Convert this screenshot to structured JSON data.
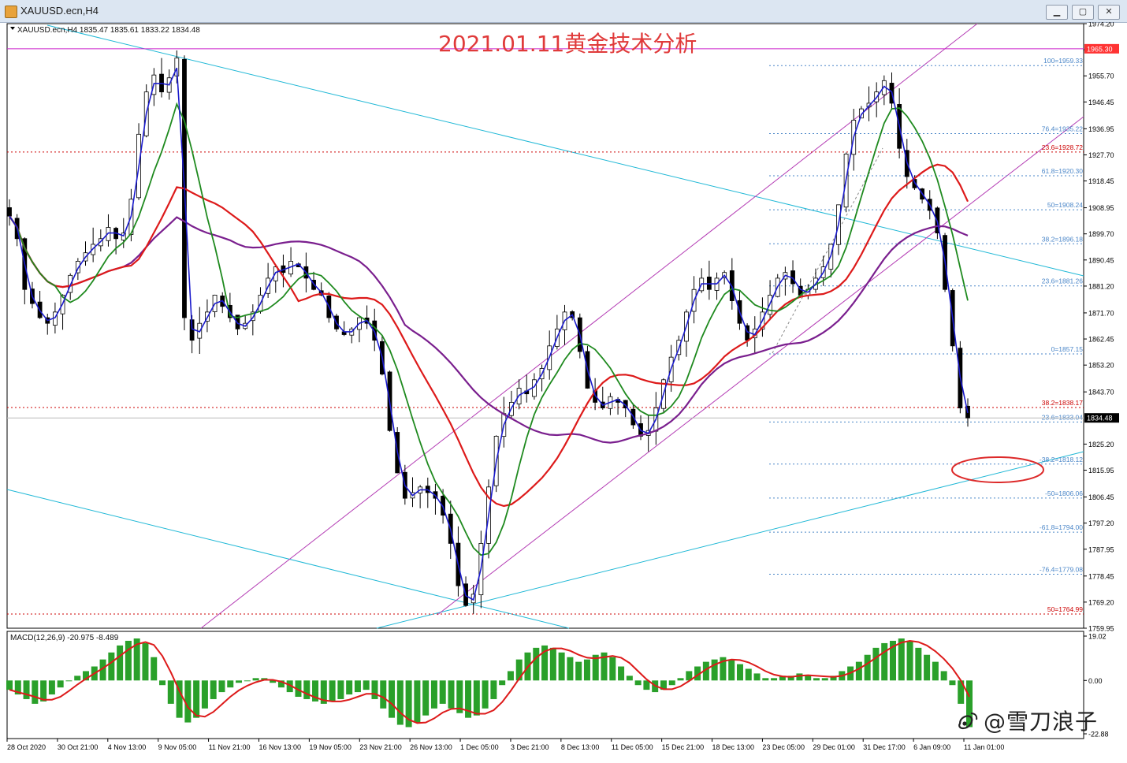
{
  "window": {
    "title": "XAUUSD.ecn,H4",
    "btn_min": "▁",
    "btn_max": "▢",
    "btn_close": "✕"
  },
  "header": {
    "info": "XAUUSD.ecn,H4  1835.47 1835.61 1833.22 1834.48",
    "caption": "2021.01.11黄金技术分析"
  },
  "macd": {
    "label": "MACD(12,26,9) -20.975 -8.489",
    "scale": [
      "19.02",
      "0.00",
      "-22.88"
    ]
  },
  "watermark": "@雪刀浪子",
  "colors": {
    "candle": "#000000",
    "sma_fast": "#1a1acc",
    "sma_mid": "#1f8a1f",
    "sma_red": "#dd1a1a",
    "sma_purple": "#7a1f8e",
    "trend_cyan": "#20b8d6",
    "channel": "#b43cb4",
    "level_red": "#cc0000",
    "fib_blue": "#4a86c8",
    "macd_hist": "#2aa02a",
    "macd_signal": "#dd1a1a",
    "highlight_ellipse": "#dd2a2a"
  },
  "chart_data": {
    "type": "candlestick",
    "symbol": "XAUUSD.ecn",
    "timeframe": "H4",
    "ohlc_last": {
      "open": 1835.47,
      "high": 1835.61,
      "low": 1833.22,
      "close": 1834.48
    },
    "current_price": "1834.48",
    "ylim": [
      1759.95,
      1974.2
    ],
    "y_ticks": [
      "1974.20",
      "1964.95",
      "1955.70",
      "1946.45",
      "1936.95",
      "1927.70",
      "1918.45",
      "1908.95",
      "1899.70",
      "1890.45",
      "1881.20",
      "1871.70",
      "1862.45",
      "1853.20",
      "1843.70",
      "1834.48",
      "1825.20",
      "1815.95",
      "1806.45",
      "1797.20",
      "1787.95",
      "1778.45",
      "1769.20",
      "1759.95"
    ],
    "x_ticks": [
      "28 Oct 2020",
      "30 Oct 21:00",
      "4 Nov 13:00",
      "9 Nov 05:00",
      "11 Nov 21:00",
      "16 Nov 13:00",
      "19 Nov 05:00",
      "23 Nov 21:00",
      "26 Nov 13:00",
      "1 Dec 05:00",
      "3 Dec 21:00",
      "8 Dec 13:00",
      "11 Dec 05:00",
      "15 Dec 21:00",
      "18 Dec 13:00",
      "23 Dec 05:00",
      "29 Dec 01:00",
      "31 Dec 17:00",
      "6 Jan 09:00",
      "11 Jan 01:00"
    ],
    "horizontal_levels": [
      {
        "label": "1965.30",
        "value": 1965.3,
        "color": "magenta"
      }
    ],
    "fib_levels": [
      {
        "label": "100=1959.33",
        "value": 1959.33,
        "style": "blue-dotted"
      },
      {
        "label": "76.4=1935.22",
        "value": 1935.22,
        "style": "blue-dotted"
      },
      {
        "label": "23.6=1928.72",
        "value": 1928.72,
        "style": "red-dotted"
      },
      {
        "label": "61.8=1920.30",
        "value": 1920.3,
        "style": "blue-dotted"
      },
      {
        "label": "50=1908.24",
        "value": 1908.24,
        "style": "blue-dotted"
      },
      {
        "label": "38.2=1896.18",
        "value": 1896.18,
        "style": "blue-dotted"
      },
      {
        "label": "23.6=1881.26",
        "value": 1881.26,
        "style": "blue-dotted"
      },
      {
        "label": "0=1857.15",
        "value": 1857.15,
        "style": "blue-dotted"
      },
      {
        "label": "38.2=1838.17",
        "value": 1838.17,
        "style": "red-dotted"
      },
      {
        "label": "23.6=1833.04",
        "value": 1833.04,
        "style": "blue-dotted"
      },
      {
        "label": "-38.2=1818.12",
        "value": 1818.12,
        "style": "blue-dotted"
      },
      {
        "label": "-50=1806.06",
        "value": 1806.06,
        "style": "blue-dotted"
      },
      {
        "label": "-61.8=1794.00",
        "value": 1794.0,
        "style": "blue-dotted"
      },
      {
        "label": "-76.4=1779.08",
        "value": 1779.08,
        "style": "blue-dotted"
      },
      {
        "label": "50=1764.99",
        "value": 1764.99,
        "style": "red-dotted"
      }
    ],
    "closes": [
      1906,
      1898,
      1880,
      1875,
      1870,
      1868,
      1872,
      1878,
      1885,
      1890,
      1893,
      1896,
      1898,
      1902,
      1898,
      1900,
      1912,
      1935,
      1950,
      1956,
      1950,
      1955,
      1962,
      1870,
      1862,
      1868,
      1872,
      1878,
      1874,
      1870,
      1866,
      1868,
      1872,
      1878,
      1884,
      1888,
      1886,
      1890,
      1888,
      1884,
      1880,
      1878,
      1870,
      1866,
      1864,
      1866,
      1870,
      1868,
      1862,
      1850,
      1830,
      1815,
      1806,
      1808,
      1810,
      1808,
      1806,
      1800,
      1790,
      1775,
      1768,
      1772,
      1790,
      1810,
      1828,
      1836,
      1840,
      1845,
      1843,
      1848,
      1852,
      1860,
      1866,
      1872,
      1870,
      1858,
      1845,
      1840,
      1838,
      1842,
      1840,
      1838,
      1832,
      1828,
      1830,
      1838,
      1848,
      1856,
      1862,
      1872,
      1880,
      1884,
      1880,
      1884,
      1886,
      1876,
      1868,
      1862,
      1866,
      1872,
      1878,
      1884,
      1886,
      1882,
      1878,
      1880,
      1884,
      1888,
      1896,
      1910,
      1928,
      1940,
      1944,
      1946,
      1950,
      1954,
      1946,
      1930,
      1920,
      1916,
      1912,
      1908,
      1900,
      1880,
      1860,
      1838,
      1834.48
    ],
    "macd_histogram": [
      -4,
      -6,
      -8,
      -10,
      -9,
      -6,
      -3,
      0,
      2,
      4,
      6,
      9,
      12,
      15,
      17,
      18,
      16,
      10,
      -2,
      -10,
      -16,
      -18,
      -16,
      -12,
      -8,
      -5,
      -3,
      -1,
      0,
      1,
      1,
      -1,
      -3,
      -5,
      -7,
      -8,
      -9,
      -10,
      -9,
      -8,
      -6,
      -5,
      -4,
      -8,
      -12,
      -16,
      -19,
      -20,
      -18,
      -15,
      -12,
      -10,
      -12,
      -14,
      -16,
      -15,
      -12,
      -8,
      -2,
      4,
      9,
      12,
      14,
      15,
      14,
      12,
      10,
      8,
      9,
      11,
      12,
      10,
      6,
      2,
      -2,
      -4,
      -5,
      -4,
      -2,
      1,
      4,
      6,
      8,
      9,
      10,
      9,
      7,
      5,
      3,
      1,
      1,
      2,
      2,
      3,
      2,
      1,
      1,
      2,
      4,
      6,
      8,
      11,
      14,
      16,
      17,
      18,
      17,
      14,
      11,
      8,
      4,
      -2,
      -10,
      -20
    ],
    "macd_scale": [
      19.02,
      0.0,
      -22.88
    ]
  }
}
